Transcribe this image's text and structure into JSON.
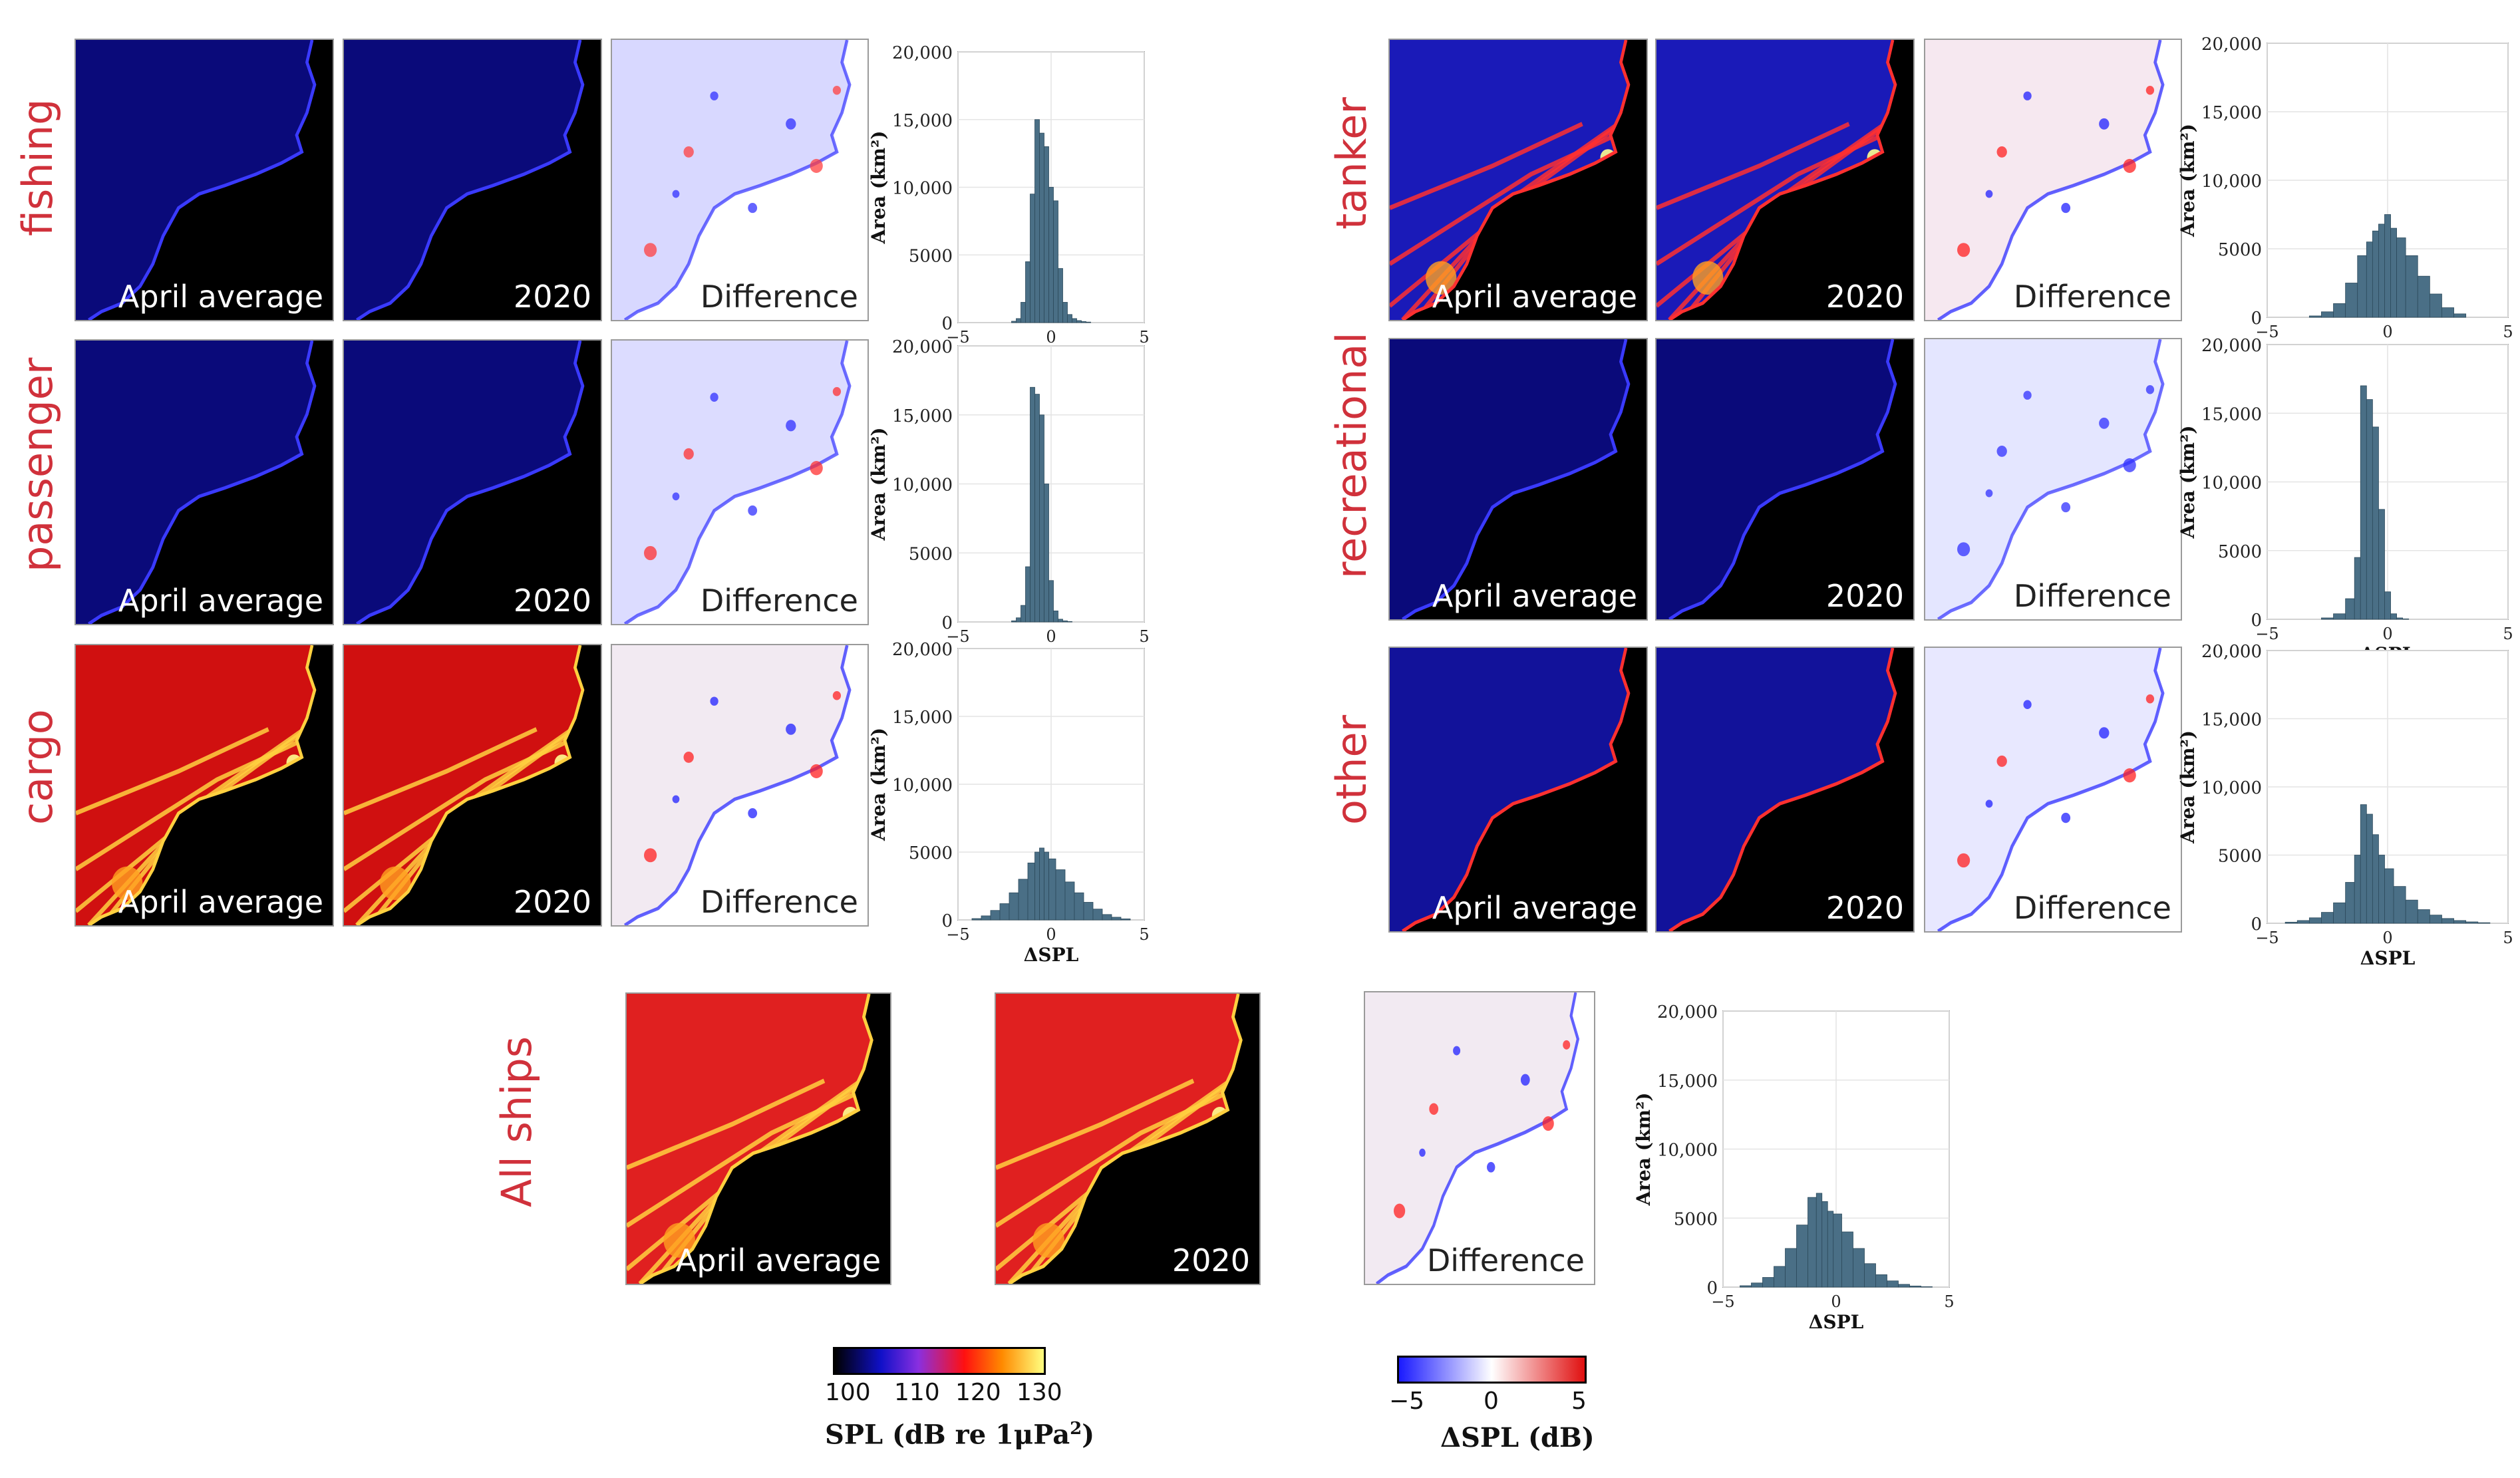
{
  "figure_title": "",
  "rows": [
    {
      "label": "fishing"
    },
    {
      "label": "passenger"
    },
    {
      "label": "cargo"
    },
    {
      "label": "tanker"
    },
    {
      "label": "recreational"
    },
    {
      "label": "other"
    },
    {
      "label": "All ships"
    }
  ],
  "captions": {
    "average": "April average",
    "year": "2020",
    "difference": "Difference"
  },
  "histogram_axes": {
    "ylabel": "Area (km²)",
    "xlabel": "ΔSPL",
    "yticks": [
      "0",
      "5000",
      "10,000",
      "15,000",
      "20,000"
    ],
    "xticks": [
      "−5",
      "0",
      "5"
    ]
  },
  "colorbars": {
    "spl": {
      "ticks": [
        "100",
        "110",
        "120",
        "130"
      ],
      "label_main": "SPL (dB re 1μPa",
      "label_sup": "2",
      "label_end": ")",
      "colors": [
        "#000000",
        "#1010c8",
        "#8a2fe0",
        "#ff1010",
        "#ff8a00",
        "#ffff80"
      ]
    },
    "delta": {
      "ticks": [
        "−5",
        "0",
        "5"
      ],
      "label": "ΔSPL (dB)",
      "colors": [
        "#1a1aff",
        "#ffffff",
        "#e01010"
      ]
    }
  },
  "chart_data": [
    {
      "type": "bar",
      "title": "fishing",
      "xlabel": "ΔSPL",
      "ylabel": "Area (km²)",
      "xlim": [
        -5,
        5
      ],
      "ylim": [
        0,
        20000
      ],
      "x": [
        -2.0,
        -1.75,
        -1.5,
        -1.25,
        -1.0,
        -0.75,
        -0.5,
        -0.25,
        0.0,
        0.25,
        0.5,
        0.75,
        1.0,
        1.25,
        1.5,
        1.75,
        2.0
      ],
      "values": [
        100,
        300,
        1500,
        4500,
        9500,
        15000,
        14000,
        13000,
        10000,
        9000,
        4000,
        1500,
        600,
        300,
        150,
        80,
        40
      ]
    },
    {
      "type": "bar",
      "title": "passenger",
      "xlabel": "ΔSPL",
      "ylabel": "Area (km²)",
      "xlim": [
        -5,
        5
      ],
      "ylim": [
        0,
        20000
      ],
      "x": [
        -2.0,
        -1.75,
        -1.5,
        -1.25,
        -1.0,
        -0.75,
        -0.5,
        -0.25,
        0.0,
        0.25,
        0.5,
        0.75,
        1.0
      ],
      "values": [
        80,
        300,
        1200,
        4000,
        17000,
        16500,
        15000,
        10000,
        3000,
        800,
        200,
        80,
        30
      ]
    },
    {
      "type": "bar",
      "title": "cargo",
      "xlabel": "ΔSPL",
      "ylabel": "Area (km²)",
      "xlim": [
        -5,
        5
      ],
      "ylim": [
        0,
        20000
      ],
      "x": [
        -4.0,
        -3.5,
        -3.0,
        -2.5,
        -2.0,
        -1.5,
        -1.0,
        -0.75,
        -0.5,
        -0.25,
        0.0,
        0.5,
        1.0,
        1.5,
        2.0,
        2.5,
        3.0,
        3.5,
        4.0
      ],
      "values": [
        100,
        300,
        700,
        1200,
        2000,
        3000,
        4200,
        5000,
        5300,
        5000,
        4500,
        3700,
        2800,
        2000,
        1300,
        800,
        400,
        200,
        80
      ]
    },
    {
      "type": "bar",
      "title": "tanker",
      "xlabel": "ΔSPL",
      "ylabel": "Area (km²)",
      "xlim": [
        -5,
        5
      ],
      "ylim": [
        0,
        20000
      ],
      "x": [
        -3.0,
        -2.5,
        -2.0,
        -1.5,
        -1.0,
        -0.75,
        -0.5,
        -0.25,
        0.0,
        0.25,
        0.5,
        1.0,
        1.5,
        2.0,
        2.5,
        3.0
      ],
      "values": [
        100,
        400,
        1000,
        2500,
        4500,
        5500,
        6300,
        6800,
        7500,
        6500,
        5800,
        4500,
        3000,
        1700,
        700,
        250
      ]
    },
    {
      "type": "bar",
      "title": "recreational",
      "xlabel": "ΔSPL",
      "ylabel": "Area (km²)",
      "xlim": [
        -5,
        5
      ],
      "ylim": [
        0,
        20000
      ],
      "x": [
        -2.5,
        -2.0,
        -1.5,
        -1.25,
        -1.0,
        -0.75,
        -0.5,
        -0.25,
        0.0,
        0.25,
        0.5,
        0.75
      ],
      "values": [
        100,
        400,
        1500,
        4500,
        17000,
        16000,
        14000,
        8000,
        2000,
        400,
        100,
        30
      ]
    },
    {
      "type": "bar",
      "title": "other",
      "xlabel": "ΔSPL",
      "ylabel": "Area (km²)",
      "xlim": [
        -5,
        5
      ],
      "ylim": [
        0,
        20000
      ],
      "x": [
        -4.0,
        -3.5,
        -3.0,
        -2.5,
        -2.0,
        -1.5,
        -1.25,
        -1.0,
        -0.75,
        -0.5,
        -0.25,
        0.0,
        0.5,
        1.0,
        1.5,
        2.0,
        2.5,
        3.0,
        3.5,
        4.0
      ],
      "values": [
        80,
        200,
        400,
        800,
        1500,
        3000,
        5000,
        8700,
        8000,
        6500,
        5000,
        4000,
        2700,
        1700,
        1000,
        600,
        350,
        200,
        100,
        40
      ]
    },
    {
      "type": "bar",
      "title": "All ships",
      "xlabel": "ΔSPL",
      "ylabel": "Area (km²)",
      "xlim": [
        -5,
        5
      ],
      "ylim": [
        0,
        20000
      ],
      "x": [
        -4.0,
        -3.5,
        -3.0,
        -2.5,
        -2.0,
        -1.5,
        -1.0,
        -0.75,
        -0.5,
        -0.25,
        0.0,
        0.5,
        1.0,
        1.5,
        2.0,
        2.5,
        3.0,
        3.5,
        4.0
      ],
      "values": [
        100,
        300,
        700,
        1500,
        2800,
        4500,
        6500,
        6800,
        6200,
        5500,
        5300,
        4000,
        2800,
        1700,
        900,
        450,
        200,
        80,
        30
      ]
    }
  ]
}
